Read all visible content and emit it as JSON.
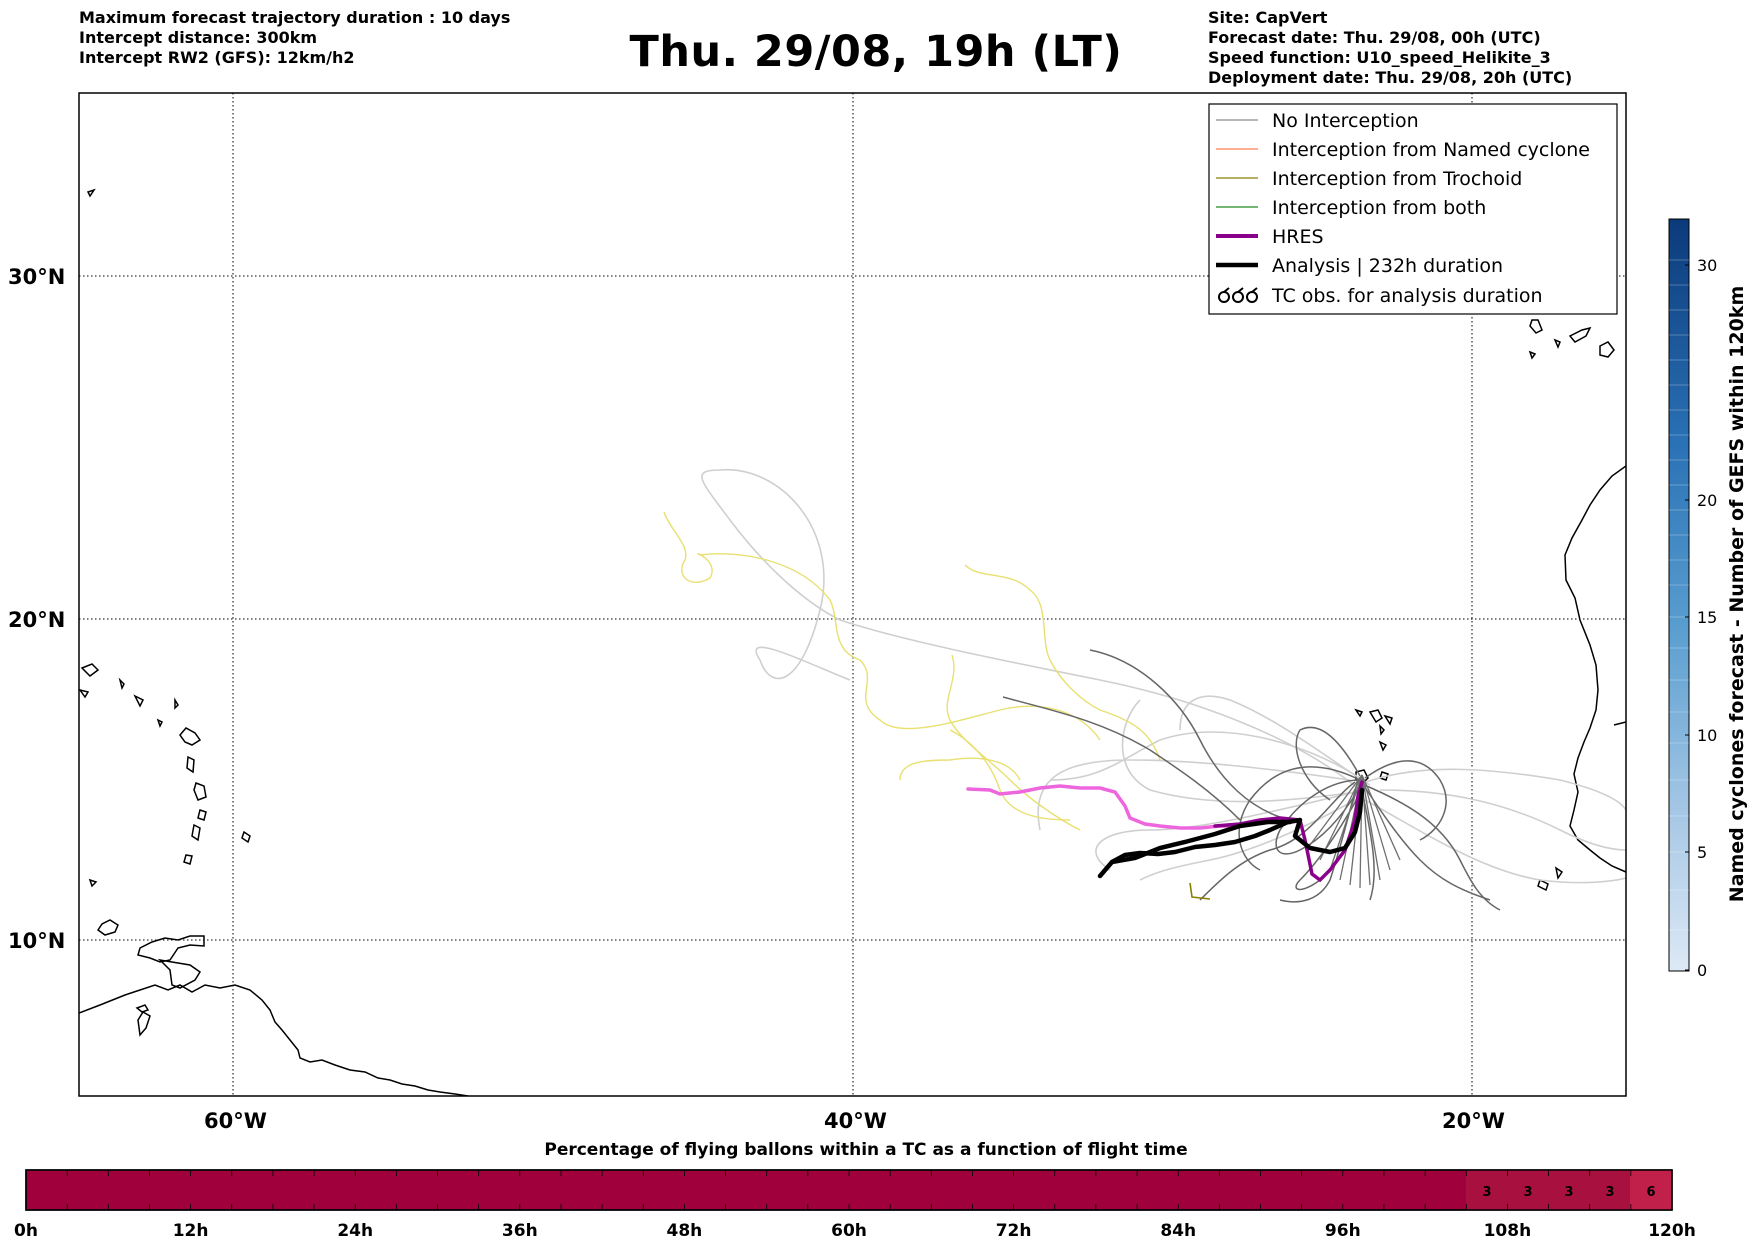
{
  "header_left": {
    "line1": "Maximum forecast trajectory duration : 10 days",
    "line2": "Intercept distance: 300km",
    "line3": "Intercept RW2 (GFS):  12km/h2"
  },
  "title": "Thu. 29/08, 19h (LT)",
  "header_right": {
    "site": "Site: CapVert",
    "forecast_date": "Forecast date: Thu. 29/08, 00h (UTC)",
    "speed_function": "Speed function: U10_speed_Helikite_3",
    "deployment_date": "Deployment date: Thu. 29/08, 20h (UTC)"
  },
  "map": {
    "lat_labels": [
      "30°N",
      "20°N",
      "10°N"
    ],
    "lon_labels": [
      "60°W",
      "40°W",
      "20°W"
    ],
    "colors": {
      "no_interception": "#8c8c8c",
      "named_cyclone": "#ff7f50",
      "trochoid": "#8b8000",
      "both": "#228b22",
      "hres": "#8b008b",
      "hres_light": "#ee66dd",
      "analysis": "#000000",
      "yellow_tracks": "#e8e070",
      "light_tracks": "#cfcfcf",
      "dark_tracks": "#666666"
    }
  },
  "legend": {
    "items": [
      {
        "label": "No Interception",
        "icon": "thin-gray-line"
      },
      {
        "label": "Interception from Named cyclone",
        "icon": "thin-coral-line"
      },
      {
        "label": "Interception from Trochoid",
        "icon": "thin-olive-line"
      },
      {
        "label": "Interception from both",
        "icon": "thin-green-line"
      },
      {
        "label": "HRES",
        "icon": "thick-purple-line"
      },
      {
        "label": "Analysis | 232h duration",
        "icon": "thick-black-line"
      },
      {
        "label": "TC obs. for analysis duration",
        "icon": "cyclone-symbols-icon"
      }
    ]
  },
  "colorbar": {
    "label": "Named cyclones forecast - Number of GEFS within 120km",
    "ticks": [
      "30",
      "20",
      "15",
      "10",
      "5",
      "0"
    ],
    "color_low": "#d9e6f5",
    "color_high": "#0b3a7a"
  },
  "progress_bar": {
    "title": "Percentage of flying ballons within a TC as a function of flight time",
    "tick_labels": [
      "0h",
      "12h",
      "24h",
      "36h",
      "48h",
      "60h",
      "72h",
      "84h",
      "96h",
      "108h",
      "120h"
    ],
    "base_color": "#a0003c",
    "cells_with_values": [
      {
        "value": "3",
        "hours": 108
      },
      {
        "value": "3",
        "hours": 111
      },
      {
        "value": "3",
        "hours": 114
      },
      {
        "value": "3",
        "hours": 117
      },
      {
        "value": "6",
        "hours": 120
      }
    ]
  }
}
